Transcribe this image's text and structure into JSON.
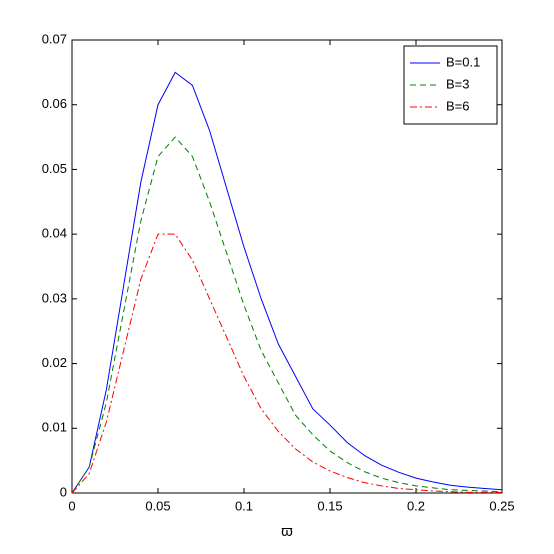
{
  "chart_data": {
    "type": "line",
    "x_label": "ϖ",
    "x": [
      0,
      0.01,
      0.02,
      0.03,
      0.04,
      0.05,
      0.06,
      0.07,
      0.08,
      0.09,
      0.1,
      0.11,
      0.12,
      0.13,
      0.14,
      0.15,
      0.16,
      0.17,
      0.18,
      0.19,
      0.2,
      0.21,
      0.22,
      0.23,
      0.24,
      0.25
    ],
    "series": [
      {
        "name": "B=0.1",
        "color": "#0000ff",
        "style": "solid",
        "values": [
          0,
          0.004,
          0.016,
          0.032,
          0.048,
          0.06,
          0.065,
          0.063,
          0.056,
          0.047,
          0.038,
          0.03,
          0.023,
          0.018,
          0.013,
          0.0105,
          0.0078,
          0.0058,
          0.0043,
          0.0032,
          0.0023,
          0.0017,
          0.0012,
          0.0009,
          0.0007,
          0.0005
        ]
      },
      {
        "name": "B=3",
        "color": "#008000",
        "style": "dashed",
        "values": [
          0,
          0.004,
          0.014,
          0.028,
          0.042,
          0.052,
          0.055,
          0.052,
          0.045,
          0.037,
          0.029,
          0.022,
          0.017,
          0.012,
          0.009,
          0.0065,
          0.0047,
          0.0033,
          0.0023,
          0.0016,
          0.0011,
          0.0008,
          0.0005,
          0.0004,
          0.0003,
          0.0002
        ]
      },
      {
        "name": "B=6",
        "color": "#ff0000",
        "style": "dashdot",
        "values": [
          0,
          0.003,
          0.011,
          0.022,
          0.033,
          0.04,
          0.04,
          0.036,
          0.03,
          0.024,
          0.018,
          0.013,
          0.0095,
          0.0068,
          0.0048,
          0.0034,
          0.0024,
          0.0016,
          0.0011,
          0.0007,
          0.0005,
          0.0003,
          0.0002,
          0.0001,
          0.0001,
          0.0001
        ]
      }
    ],
    "xlim": [
      0,
      0.25
    ],
    "xticks": [
      0,
      0.05,
      0.1,
      0.15,
      0.2,
      0.25
    ],
    "ylim": [
      0,
      0.07
    ],
    "yticks": [
      0,
      0.01,
      0.02,
      0.03,
      0.04,
      0.05,
      0.06,
      0.07
    ],
    "grid": false,
    "legend": "upper right"
  }
}
